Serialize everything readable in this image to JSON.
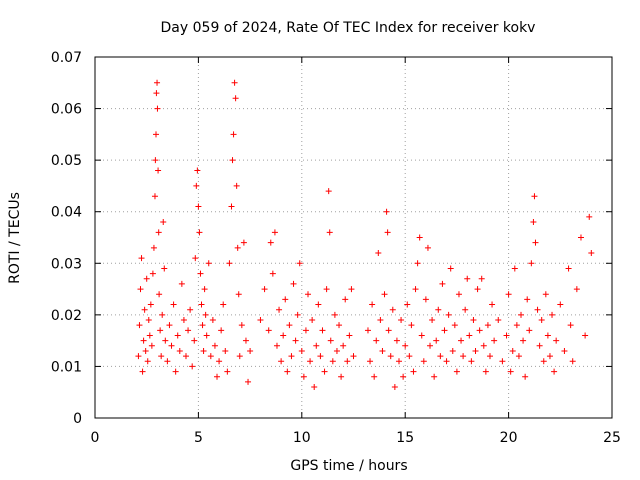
{
  "chart_data": {
    "type": "scatter",
    "title": "Day 059 of 2024, Rate Of TEC Index for receiver kokv",
    "xlabel": "GPS time / hours",
    "ylabel": "ROTI / TECUs",
    "xlim": [
      0,
      25
    ],
    "ylim": [
      0,
      0.07
    ],
    "x_ticks": [
      0,
      5,
      10,
      15,
      20,
      25
    ],
    "x_tick_labels": [
      "0",
      "5",
      "10",
      "15",
      "20",
      "25"
    ],
    "y_ticks": [
      0,
      0.01,
      0.02,
      0.03,
      0.04,
      0.05,
      0.06,
      0.07
    ],
    "y_tick_labels": [
      "0",
      "0.01",
      "0.02",
      "0.03",
      "0.04",
      "0.05",
      "0.06",
      "0.07"
    ],
    "grid": true,
    "marker": "plus",
    "series": [
      {
        "name": "ROTI",
        "color": "#ff0000",
        "points": [
          [
            2.1,
            0.012
          ],
          [
            2.15,
            0.018
          ],
          [
            2.2,
            0.025
          ],
          [
            2.25,
            0.031
          ],
          [
            2.3,
            0.009
          ],
          [
            2.35,
            0.015
          ],
          [
            2.4,
            0.021
          ],
          [
            2.45,
            0.013
          ],
          [
            2.5,
            0.027
          ],
          [
            2.55,
            0.011
          ],
          [
            2.6,
            0.019
          ],
          [
            2.65,
            0.016
          ],
          [
            2.7,
            0.022
          ],
          [
            2.75,
            0.014
          ],
          [
            2.8,
            0.028
          ],
          [
            2.85,
            0.033
          ],
          [
            2.9,
            0.043
          ],
          [
            2.92,
            0.05
          ],
          [
            2.95,
            0.055
          ],
          [
            2.97,
            0.063
          ],
          [
            3.0,
            0.065
          ],
          [
            3.02,
            0.06
          ],
          [
            3.05,
            0.048
          ],
          [
            3.08,
            0.036
          ],
          [
            3.1,
            0.024
          ],
          [
            3.15,
            0.017
          ],
          [
            3.2,
            0.012
          ],
          [
            3.25,
            0.02
          ],
          [
            3.3,
            0.038
          ],
          [
            3.35,
            0.029
          ],
          [
            3.4,
            0.015
          ],
          [
            3.5,
            0.011
          ],
          [
            3.6,
            0.018
          ],
          [
            3.7,
            0.014
          ],
          [
            3.8,
            0.022
          ],
          [
            3.9,
            0.009
          ],
          [
            4.0,
            0.016
          ],
          [
            4.1,
            0.013
          ],
          [
            4.2,
            0.026
          ],
          [
            4.3,
            0.019
          ],
          [
            4.4,
            0.012
          ],
          [
            4.5,
            0.017
          ],
          [
            4.6,
            0.021
          ],
          [
            4.7,
            0.01
          ],
          [
            4.8,
            0.015
          ],
          [
            4.85,
            0.031
          ],
          [
            4.9,
            0.045
          ],
          [
            4.95,
            0.048
          ],
          [
            5.0,
            0.041
          ],
          [
            5.05,
            0.036
          ],
          [
            5.1,
            0.028
          ],
          [
            5.15,
            0.022
          ],
          [
            5.2,
            0.018
          ],
          [
            5.25,
            0.013
          ],
          [
            5.3,
            0.025
          ],
          [
            5.35,
            0.02
          ],
          [
            5.4,
            0.016
          ],
          [
            5.5,
            0.03
          ],
          [
            5.6,
            0.012
          ],
          [
            5.7,
            0.019
          ],
          [
            5.8,
            0.014
          ],
          [
            5.9,
            0.008
          ],
          [
            6.0,
            0.011
          ],
          [
            6.1,
            0.017
          ],
          [
            6.2,
            0.022
          ],
          [
            6.3,
            0.013
          ],
          [
            6.4,
            0.009
          ],
          [
            6.5,
            0.03
          ],
          [
            6.6,
            0.041
          ],
          [
            6.65,
            0.05
          ],
          [
            6.7,
            0.055
          ],
          [
            6.75,
            0.065
          ],
          [
            6.8,
            0.062
          ],
          [
            6.85,
            0.045
          ],
          [
            6.9,
            0.033
          ],
          [
            6.95,
            0.024
          ],
          [
            7.0,
            0.012
          ],
          [
            7.1,
            0.018
          ],
          [
            7.2,
            0.034
          ],
          [
            7.3,
            0.015
          ],
          [
            7.4,
            0.007
          ],
          [
            7.5,
            0.013
          ],
          [
            8.0,
            0.019
          ],
          [
            8.2,
            0.025
          ],
          [
            8.4,
            0.017
          ],
          [
            8.5,
            0.034
          ],
          [
            8.6,
            0.028
          ],
          [
            8.7,
            0.036
          ],
          [
            8.8,
            0.014
          ],
          [
            8.9,
            0.021
          ],
          [
            9.0,
            0.011
          ],
          [
            9.1,
            0.016
          ],
          [
            9.2,
            0.023
          ],
          [
            9.3,
            0.009
          ],
          [
            9.4,
            0.018
          ],
          [
            9.5,
            0.012
          ],
          [
            9.6,
            0.026
          ],
          [
            9.7,
            0.015
          ],
          [
            9.8,
            0.02
          ],
          [
            9.9,
            0.03
          ],
          [
            10.0,
            0.013
          ],
          [
            10.1,
            0.008
          ],
          [
            10.2,
            0.017
          ],
          [
            10.3,
            0.024
          ],
          [
            10.4,
            0.011
          ],
          [
            10.5,
            0.019
          ],
          [
            10.6,
            0.006
          ],
          [
            10.7,
            0.014
          ],
          [
            10.8,
            0.022
          ],
          [
            10.9,
            0.012
          ],
          [
            11.0,
            0.017
          ],
          [
            11.1,
            0.009
          ],
          [
            11.2,
            0.025
          ],
          [
            11.3,
            0.044
          ],
          [
            11.35,
            0.036
          ],
          [
            11.4,
            0.015
          ],
          [
            11.5,
            0.011
          ],
          [
            11.6,
            0.02
          ],
          [
            11.7,
            0.013
          ],
          [
            11.8,
            0.018
          ],
          [
            11.9,
            0.008
          ],
          [
            12.0,
            0.014
          ],
          [
            12.1,
            0.023
          ],
          [
            12.2,
            0.011
          ],
          [
            12.3,
            0.016
          ],
          [
            12.4,
            0.025
          ],
          [
            12.5,
            0.012
          ],
          [
            13.2,
            0.017
          ],
          [
            13.3,
            0.011
          ],
          [
            13.4,
            0.022
          ],
          [
            13.5,
            0.008
          ],
          [
            13.6,
            0.015
          ],
          [
            13.7,
            0.032
          ],
          [
            13.8,
            0.019
          ],
          [
            13.9,
            0.013
          ],
          [
            14.0,
            0.024
          ],
          [
            14.1,
            0.04
          ],
          [
            14.15,
            0.036
          ],
          [
            14.2,
            0.017
          ],
          [
            14.3,
            0.012
          ],
          [
            14.4,
            0.021
          ],
          [
            14.5,
            0.006
          ],
          [
            14.6,
            0.015
          ],
          [
            14.7,
            0.011
          ],
          [
            14.8,
            0.019
          ],
          [
            14.9,
            0.008
          ],
          [
            15.0,
            0.014
          ],
          [
            15.1,
            0.022
          ],
          [
            15.2,
            0.012
          ],
          [
            15.3,
            0.018
          ],
          [
            15.4,
            0.009
          ],
          [
            15.5,
            0.025
          ],
          [
            15.6,
            0.03
          ],
          [
            15.7,
            0.035
          ],
          [
            15.8,
            0.016
          ],
          [
            15.9,
            0.011
          ],
          [
            16.0,
            0.023
          ],
          [
            16.1,
            0.033
          ],
          [
            16.2,
            0.014
          ],
          [
            16.3,
            0.019
          ],
          [
            16.4,
            0.008
          ],
          [
            16.5,
            0.015
          ],
          [
            16.6,
            0.021
          ],
          [
            16.7,
            0.012
          ],
          [
            16.8,
            0.026
          ],
          [
            16.9,
            0.017
          ],
          [
            17.0,
            0.011
          ],
          [
            17.1,
            0.02
          ],
          [
            17.2,
            0.029
          ],
          [
            17.3,
            0.013
          ],
          [
            17.4,
            0.018
          ],
          [
            17.5,
            0.009
          ],
          [
            17.6,
            0.024
          ],
          [
            17.7,
            0.015
          ],
          [
            17.8,
            0.012
          ],
          [
            17.9,
            0.021
          ],
          [
            18.0,
            0.027
          ],
          [
            18.1,
            0.016
          ],
          [
            18.2,
            0.011
          ],
          [
            18.3,
            0.019
          ],
          [
            18.4,
            0.013
          ],
          [
            18.5,
            0.025
          ],
          [
            18.6,
            0.017
          ],
          [
            18.7,
            0.027
          ],
          [
            18.8,
            0.014
          ],
          [
            18.9,
            0.009
          ],
          [
            19.0,
            0.018
          ],
          [
            19.1,
            0.012
          ],
          [
            19.2,
            0.022
          ],
          [
            19.3,
            0.015
          ],
          [
            19.5,
            0.019
          ],
          [
            19.7,
            0.011
          ],
          [
            19.9,
            0.016
          ],
          [
            20.0,
            0.024
          ],
          [
            20.1,
            0.009
          ],
          [
            20.2,
            0.013
          ],
          [
            20.3,
            0.029
          ],
          [
            20.4,
            0.018
          ],
          [
            20.5,
            0.012
          ],
          [
            20.6,
            0.02
          ],
          [
            20.7,
            0.015
          ],
          [
            20.8,
            0.008
          ],
          [
            20.9,
            0.023
          ],
          [
            21.0,
            0.017
          ],
          [
            21.1,
            0.03
          ],
          [
            21.2,
            0.038
          ],
          [
            21.25,
            0.043
          ],
          [
            21.3,
            0.034
          ],
          [
            21.4,
            0.021
          ],
          [
            21.5,
            0.014
          ],
          [
            21.6,
            0.019
          ],
          [
            21.7,
            0.011
          ],
          [
            21.8,
            0.024
          ],
          [
            21.9,
            0.016
          ],
          [
            22.0,
            0.012
          ],
          [
            22.1,
            0.02
          ],
          [
            22.2,
            0.009
          ],
          [
            22.3,
            0.015
          ],
          [
            22.5,
            0.022
          ],
          [
            22.7,
            0.013
          ],
          [
            22.9,
            0.029
          ],
          [
            23.0,
            0.018
          ],
          [
            23.1,
            0.011
          ],
          [
            23.3,
            0.025
          ],
          [
            23.5,
            0.035
          ],
          [
            23.7,
            0.016
          ],
          [
            23.9,
            0.039
          ],
          [
            24.0,
            0.032
          ]
        ]
      }
    ]
  }
}
